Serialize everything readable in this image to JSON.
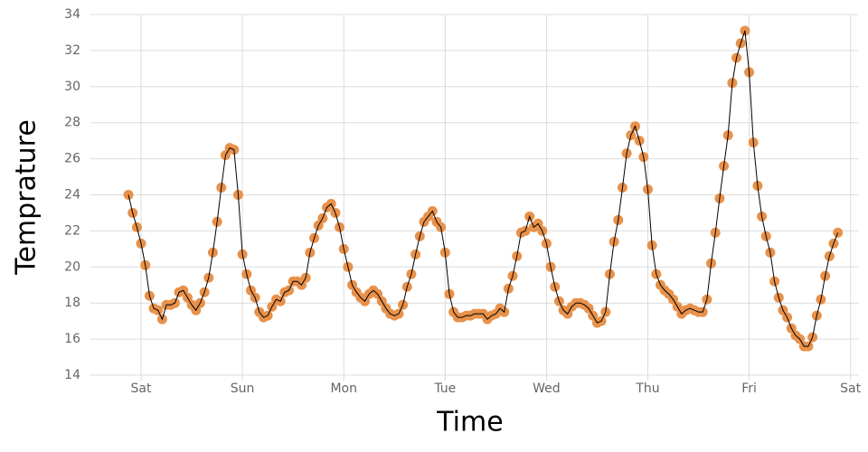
{
  "chart_data": {
    "type": "line",
    "x_label": "Time",
    "y_label": "Temprature",
    "x": [
      -3,
      -2,
      -1,
      0,
      1,
      2,
      3,
      4,
      5,
      6,
      7,
      8,
      9,
      10,
      11,
      12,
      13,
      14,
      15,
      16,
      17,
      18,
      19,
      20,
      21,
      22,
      23,
      24,
      25,
      26,
      27,
      28,
      29,
      30,
      31,
      32,
      33,
      34,
      35,
      36,
      37,
      38,
      39,
      40,
      41,
      42,
      43,
      44,
      45,
      46,
      47,
      48,
      49,
      50,
      51,
      52,
      53,
      54,
      55,
      56,
      57,
      58,
      59,
      60,
      61,
      62,
      63,
      64,
      65,
      66,
      67,
      68,
      69,
      70,
      71,
      72,
      73,
      74,
      75,
      76,
      77,
      78,
      79,
      80,
      81,
      82,
      83,
      84,
      85,
      86,
      87,
      88,
      89,
      90,
      91,
      92,
      93,
      94,
      95,
      96,
      97,
      98,
      99,
      100,
      101,
      102,
      103,
      104,
      105,
      106,
      107,
      108,
      109,
      110,
      111,
      112,
      113,
      114,
      115,
      116,
      117,
      118,
      119,
      120,
      121,
      122,
      123,
      124,
      125,
      126,
      127,
      128,
      129,
      130,
      131,
      132,
      133,
      134,
      135,
      136,
      137,
      138,
      139,
      140,
      141,
      142,
      143,
      144,
      145,
      146,
      147,
      148,
      149,
      150,
      151,
      152,
      153,
      154,
      155,
      156,
      157,
      158,
      159,
      160,
      161,
      162,
      163,
      164,
      165
    ],
    "series": [
      {
        "color": "#e8914a",
        "line_color": "#000000",
        "values": [
          24.0,
          23.0,
          22.2,
          21.3,
          20.1,
          18.4,
          17.7,
          17.6,
          17.1,
          17.9,
          17.9,
          18.0,
          18.6,
          18.7,
          18.3,
          17.9,
          17.6,
          18.0,
          18.6,
          19.4,
          20.8,
          22.5,
          24.4,
          26.2,
          26.6,
          26.5,
          24.0,
          20.7,
          19.6,
          18.7,
          18.3,
          17.5,
          17.2,
          17.3,
          17.8,
          18.2,
          18.1,
          18.6,
          18.7,
          19.2,
          19.2,
          19.0,
          19.4,
          20.8,
          21.6,
          22.3,
          22.7,
          23.3,
          23.5,
          23.0,
          22.2,
          21.0,
          20.0,
          19.0,
          18.6,
          18.3,
          18.1,
          18.5,
          18.7,
          18.5,
          18.1,
          17.7,
          17.4,
          17.3,
          17.4,
          17.9,
          18.9,
          19.6,
          20.7,
          21.7,
          22.5,
          22.8,
          23.1,
          22.5,
          22.2,
          20.8,
          18.5,
          17.5,
          17.2,
          17.2,
          17.3,
          17.3,
          17.4,
          17.4,
          17.4,
          17.1,
          17.3,
          17.4,
          17.7,
          17.5,
          18.8,
          19.5,
          20.6,
          21.9,
          22.0,
          22.8,
          22.2,
          22.4,
          22.0,
          21.3,
          20.0,
          18.9,
          18.1,
          17.6,
          17.4,
          17.8,
          18.0,
          18.0,
          17.9,
          17.7,
          17.3,
          16.9,
          17.0,
          17.5,
          19.6,
          21.4,
          22.6,
          24.4,
          26.3,
          27.3,
          27.8,
          27.0,
          26.1,
          24.3,
          21.2,
          19.6,
          19.0,
          18.7,
          18.5,
          18.2,
          17.8,
          17.4,
          17.6,
          17.7,
          17.6,
          17.5,
          17.5,
          18.2,
          20.2,
          21.9,
          23.8,
          25.6,
          27.3,
          30.2,
          31.6,
          32.4,
          33.1,
          30.8,
          26.9,
          24.5,
          22.8,
          21.7,
          20.8,
          19.2,
          18.3,
          17.6,
          17.2,
          16.6,
          16.2,
          16.0,
          15.6,
          15.6,
          16.1,
          17.3,
          18.2,
          19.5,
          20.6,
          21.3,
          21.9
        ]
      }
    ],
    "xlim": [
      -12,
      170
    ],
    "xticks": [
      {
        "value": 0,
        "label": "Sat"
      },
      {
        "value": 24,
        "label": "Sun"
      },
      {
        "value": 48,
        "label": "Mon"
      },
      {
        "value": 72,
        "label": "Tue"
      },
      {
        "value": 96,
        "label": "Wed"
      },
      {
        "value": 120,
        "label": "Thu"
      },
      {
        "value": 144,
        "label": "Fri"
      },
      {
        "value": 168,
        "label": "Sat"
      }
    ],
    "ylim": [
      14,
      34
    ],
    "yticks": [
      14,
      16,
      18,
      20,
      22,
      24,
      26,
      28,
      30,
      32,
      34
    ],
    "grid": true
  }
}
